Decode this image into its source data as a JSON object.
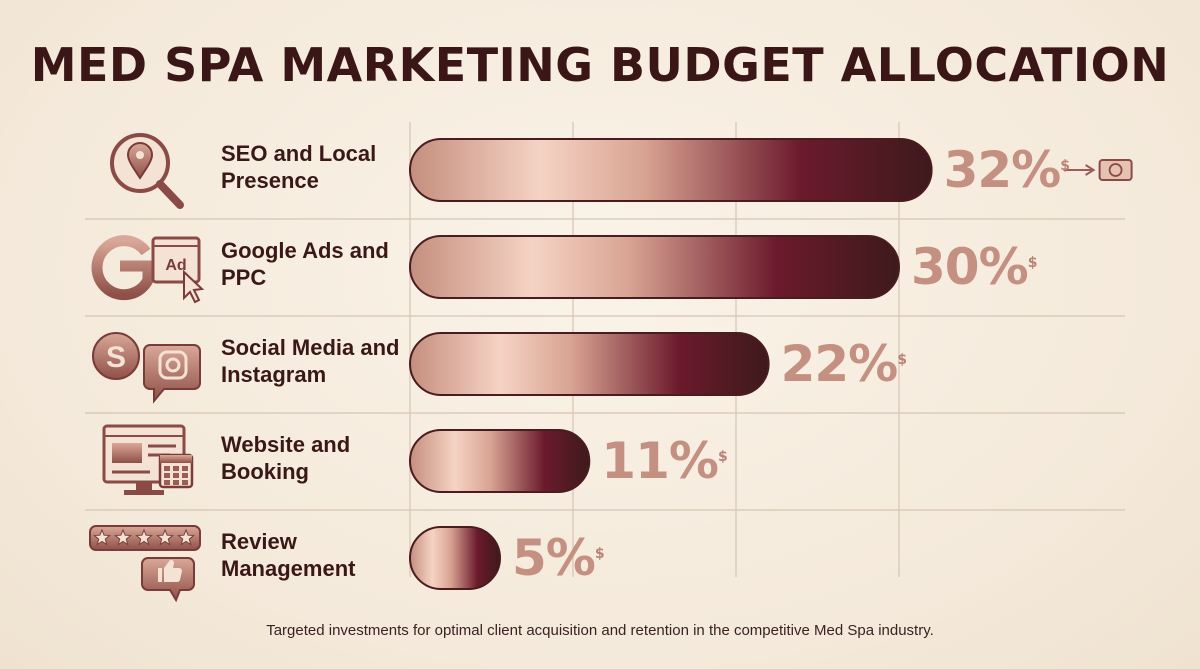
{
  "chart_data": {
    "type": "bar",
    "orientation": "horizontal",
    "title": "MED SPA MARKETING BUDGET ALLOCATION",
    "categories": [
      "SEO and Local Presence",
      "Google Ads and PPC",
      "Social Media and Instagram",
      "Website and Booking",
      "Review Management"
    ],
    "values": [
      32,
      30,
      22,
      11,
      5
    ],
    "value_labels": [
      "32%",
      "30%",
      "22%",
      "11%",
      "5%"
    ],
    "value_suffix": "$",
    "xlim": [
      0,
      40
    ],
    "grid": true,
    "footnote": "Targeted investments for optimal client acquisition and retention in the competitive Med Spa industry."
  },
  "icons": [
    [
      "location-search-icon"
    ],
    [
      "google-g-icon",
      "ad-click-icon"
    ],
    [
      "skype-icon",
      "instagram-chat-icon"
    ],
    [
      "website-monitor-icon",
      "calendar-icon"
    ],
    [
      "five-stars-icon",
      "thumbs-up-icon"
    ]
  ],
  "colors": {
    "title": "#3a1616",
    "bar_light": "#e9bfae",
    "bar_mid": "#f5d2c3",
    "bar_dark": "#6b1a2c",
    "bar_end": "#3d1a1c",
    "value_text": "#c49082",
    "icon": "#8a4a45"
  }
}
